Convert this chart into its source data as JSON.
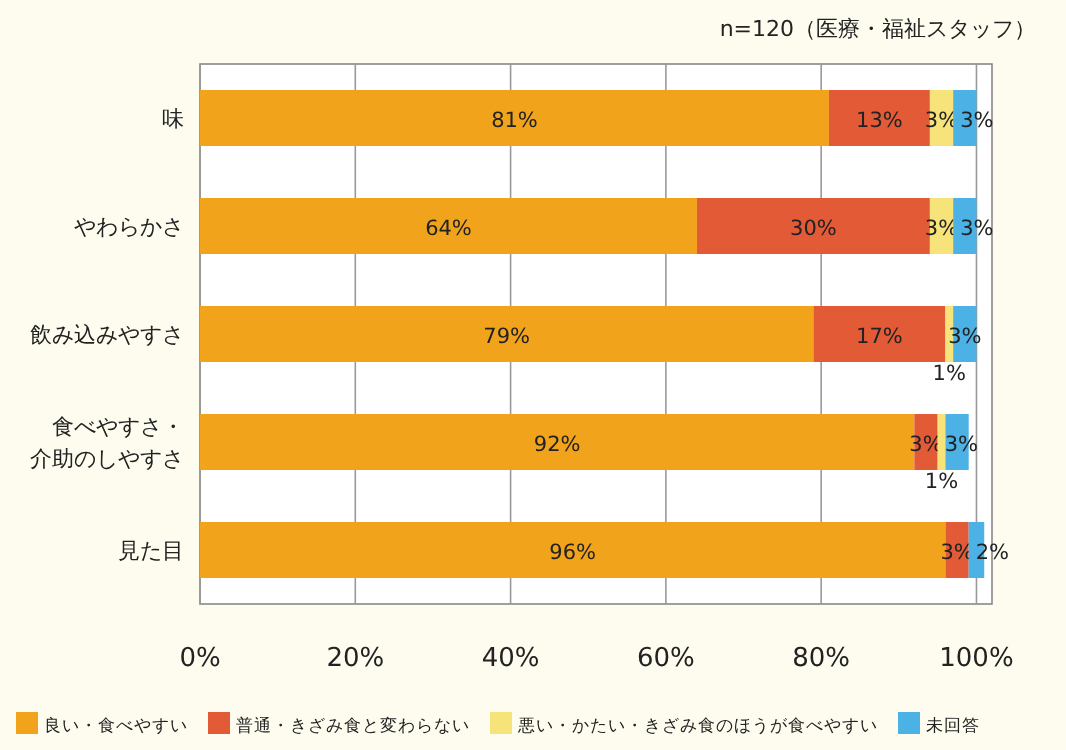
{
  "chart_data": {
    "type": "bar",
    "orientation": "horizontal",
    "stacked": true,
    "annotations": [
      "n=120（医療・福祉スタッフ）"
    ],
    "categories": [
      "味",
      "やわらかさ",
      "飲み込みやすさ",
      "食べやすさ・介助のしやすさ",
      "見た目"
    ],
    "series": [
      {
        "name": "良い・食べやすい",
        "color": "#f2a31c",
        "values": [
          81,
          64,
          79,
          92,
          96
        ],
        "value_labels": [
          "81%",
          "64%",
          "79%",
          "92%",
          "96%"
        ]
      },
      {
        "name": "普通・きざみ食と変わらない",
        "color": "#e35a36",
        "values": [
          13,
          30,
          17,
          3,
          3
        ],
        "value_labels": [
          "13%",
          "30%",
          "17%",
          "3%",
          "3%"
        ]
      },
      {
        "name": "悪い・かたい・きざみ食のほうが食べやすい",
        "color": "#f6e47a",
        "values": [
          3,
          3,
          1,
          1,
          null
        ],
        "value_labels": [
          "3%",
          "3%",
          "1%",
          "1%",
          null
        ]
      },
      {
        "name": "未回答",
        "color": "#4cb2e6",
        "values": [
          3,
          3,
          3,
          3,
          2
        ],
        "value_labels": [
          "3%",
          "3%",
          "3%",
          "3%",
          "2%"
        ]
      }
    ],
    "xlim": [
      0,
      102
    ],
    "xticks": [
      {
        "value": 0,
        "label": "0%"
      },
      {
        "value": 20,
        "label": "20%"
      },
      {
        "value": 40,
        "label": "40%"
      },
      {
        "value": 60,
        "label": "60%"
      },
      {
        "value": 80,
        "label": "80%"
      },
      {
        "value": 100,
        "label": "100%"
      }
    ],
    "grid": "x",
    "legend": "bottom"
  }
}
